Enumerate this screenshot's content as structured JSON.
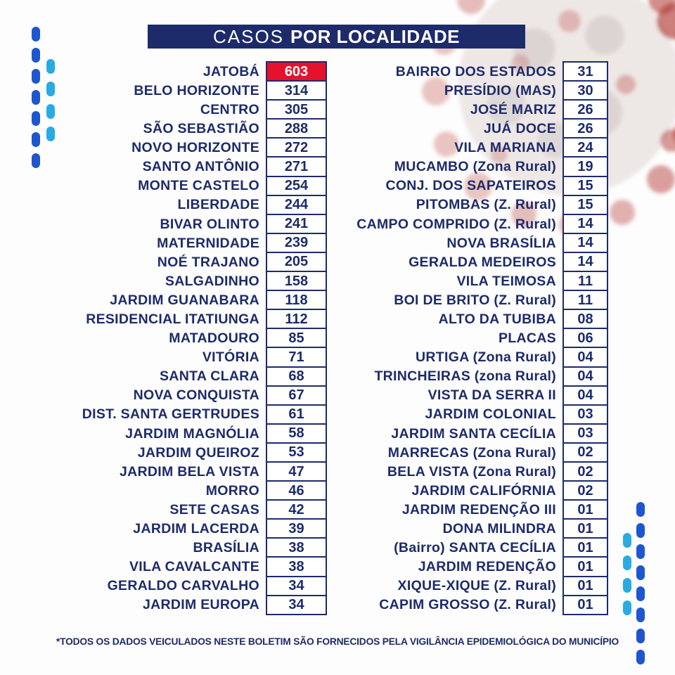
{
  "header": {
    "title_normal": "CASOS",
    "title_bold": "POR LOCALIDADE"
  },
  "footer": {
    "note": "*TODOS OS DADOS VEICULADOS NESTE BOLETIM SÃO FORNECIDOS PELA VIGILÂNCIA EPIDEMIOLÓGICA DO MUNICÍPIO"
  },
  "colors": {
    "navy": "#1d2b6b",
    "red": "#e8112d",
    "dash_dark_blue": "#1e56cf",
    "dash_light_blue": "#29abe2",
    "virus_red": "#b8423c"
  },
  "chart_data": {
    "type": "table",
    "title": "CASOS POR LOCALIDADE",
    "layout": "two-column locality vs case-count list; top value highlighted in red",
    "left_column": [
      {
        "locality": "JATOBÁ",
        "cases": "603",
        "highlight": true
      },
      {
        "locality": "BELO HORIZONTE",
        "cases": "314"
      },
      {
        "locality": "CENTRO",
        "cases": "305"
      },
      {
        "locality": "SÃO SEBASTIÃO",
        "cases": "288"
      },
      {
        "locality": "NOVO HORIZONTE",
        "cases": "272"
      },
      {
        "locality": "SANTO ANTÔNIO",
        "cases": "271"
      },
      {
        "locality": "MONTE CASTELO",
        "cases": "254"
      },
      {
        "locality": "LIBERDADE",
        "cases": "244"
      },
      {
        "locality": "BIVAR OLINTO",
        "cases": "241"
      },
      {
        "locality": "MATERNIDADE",
        "cases": "239"
      },
      {
        "locality": "NOÉ TRAJANO",
        "cases": "205"
      },
      {
        "locality": "SALGADINHO",
        "cases": "158"
      },
      {
        "locality": "JARDIM GUANABARA",
        "cases": "118"
      },
      {
        "locality": "RESIDENCIAL ITATIUNGA",
        "cases": "112"
      },
      {
        "locality": "MATADOURO",
        "cases": "85"
      },
      {
        "locality": "VITÓRIA",
        "cases": "71"
      },
      {
        "locality": "SANTA CLARA",
        "cases": "68"
      },
      {
        "locality": "NOVA CONQUISTA",
        "cases": "67"
      },
      {
        "locality": "DIST. SANTA GERTRUDES",
        "cases": "61"
      },
      {
        "locality": "JARDIM MAGNÓLIA",
        "cases": "58"
      },
      {
        "locality": "JARDIM QUEIROZ",
        "cases": "53"
      },
      {
        "locality": "JARDIM BELA VISTA",
        "cases": "47"
      },
      {
        "locality": "MORRO",
        "cases": "46"
      },
      {
        "locality": "SETE CASAS",
        "cases": "42"
      },
      {
        "locality": "JARDIM LACERDA",
        "cases": "39"
      },
      {
        "locality": "BRASÍLIA",
        "cases": "38"
      },
      {
        "locality": "VILA CAVALCANTE",
        "cases": "38"
      },
      {
        "locality": "GERALDO CARVALHO",
        "cases": "34"
      },
      {
        "locality": "JARDIM EUROPA",
        "cases": "34"
      }
    ],
    "right_column": [
      {
        "locality": "BAIRRO DOS ESTADOS",
        "cases": "31"
      },
      {
        "locality": "PRESÍDIO (MAS)",
        "cases": "30"
      },
      {
        "locality": "JOSÉ MARIZ",
        "cases": "26"
      },
      {
        "locality": "JUÁ DOCE",
        "cases": "26"
      },
      {
        "locality": "VILA MARIANA",
        "cases": "24"
      },
      {
        "locality": "MUCAMBO (Zona Rural)",
        "cases": "19"
      },
      {
        "locality": "CONJ. DOS SAPATEIROS",
        "cases": "15"
      },
      {
        "locality": "PITOMBAS (Z. Rural)",
        "cases": "15"
      },
      {
        "locality": "CAMPO COMPRIDO (Z. Rural)",
        "cases": "14"
      },
      {
        "locality": "NOVA BRASÍLIA",
        "cases": "14"
      },
      {
        "locality": "GERALDA MEDEIROS",
        "cases": "14"
      },
      {
        "locality": "VILA TEIMOSA",
        "cases": "11"
      },
      {
        "locality": "BOI DE BRITO (Z. Rural)",
        "cases": "11"
      },
      {
        "locality": "ALTO DA TUBIBA",
        "cases": "08"
      },
      {
        "locality": "PLACAS",
        "cases": "06"
      },
      {
        "locality": "URTIGA (Zona Rural)",
        "cases": "04"
      },
      {
        "locality": "TRINCHEIRAS (zona Rural)",
        "cases": "04"
      },
      {
        "locality": "VISTA DA SERRA II",
        "cases": "04"
      },
      {
        "locality": "JARDIM COLONIAL",
        "cases": "03"
      },
      {
        "locality": "JARDIM SANTA CECÍLIA",
        "cases": "03"
      },
      {
        "locality": "MARRECAS (Zona Rural)",
        "cases": "02"
      },
      {
        "locality": "BELA VISTA (Zona Rural)",
        "cases": "02"
      },
      {
        "locality": "JARDIM CALIFÓRNIA",
        "cases": "02"
      },
      {
        "locality": "JARDIM REDENÇÃO III",
        "cases": "01"
      },
      {
        "locality": "DONA MILINDRA",
        "cases": "01"
      },
      {
        "locality": "(Bairro) SANTA CECÍLIA",
        "cases": "01"
      },
      {
        "locality": "JARDIM REDENÇÃO",
        "cases": "01"
      },
      {
        "locality": "XIQUE-XIQUE (Z. Rural)",
        "cases": "01"
      },
      {
        "locality": "CAPIM GROSSO (Z. Rural)",
        "cases": "01"
      }
    ]
  }
}
